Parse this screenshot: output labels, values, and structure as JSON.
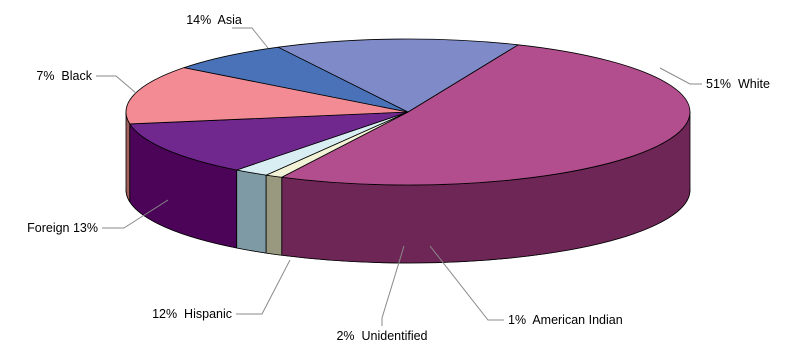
{
  "chart_data": {
    "type": "pie",
    "three_d": true,
    "legend": "none",
    "slices": [
      {
        "key": "white",
        "label": "White",
        "percent": 51,
        "display": "51%  White",
        "color": "#B24E8E",
        "side_color": "#6E2656"
      },
      {
        "key": "american_indian",
        "label": "American Indian",
        "percent": 1,
        "display": "1%  American Indian",
        "color": "#F2F2D6",
        "side_color": "#999980"
      },
      {
        "key": "unidentified",
        "label": "Unidentified",
        "percent": 2,
        "display": "2%  Unidentified",
        "color": "#D9EEF3",
        "side_color": "#7E9AA5"
      },
      {
        "key": "hispanic",
        "label": "Hispanic",
        "percent": 12,
        "display": "12%  Hispanic",
        "color": "#70278E",
        "side_color": "#4B0457"
      },
      {
        "key": "foreign",
        "label": "Foreign",
        "percent": 13,
        "display": "Foreign 13%",
        "color": "#F28B93",
        "side_color": "#A0605E"
      },
      {
        "key": "black",
        "label": "Black",
        "percent": 7,
        "display": "7%  Black",
        "color": "#4A72B8",
        "side_color": "#2C4A80"
      },
      {
        "key": "asia",
        "label": "Asia",
        "percent": 14,
        "display": "14%  Asia",
        "color": "#7E8BC8",
        "side_color": "#55609A"
      }
    ]
  }
}
